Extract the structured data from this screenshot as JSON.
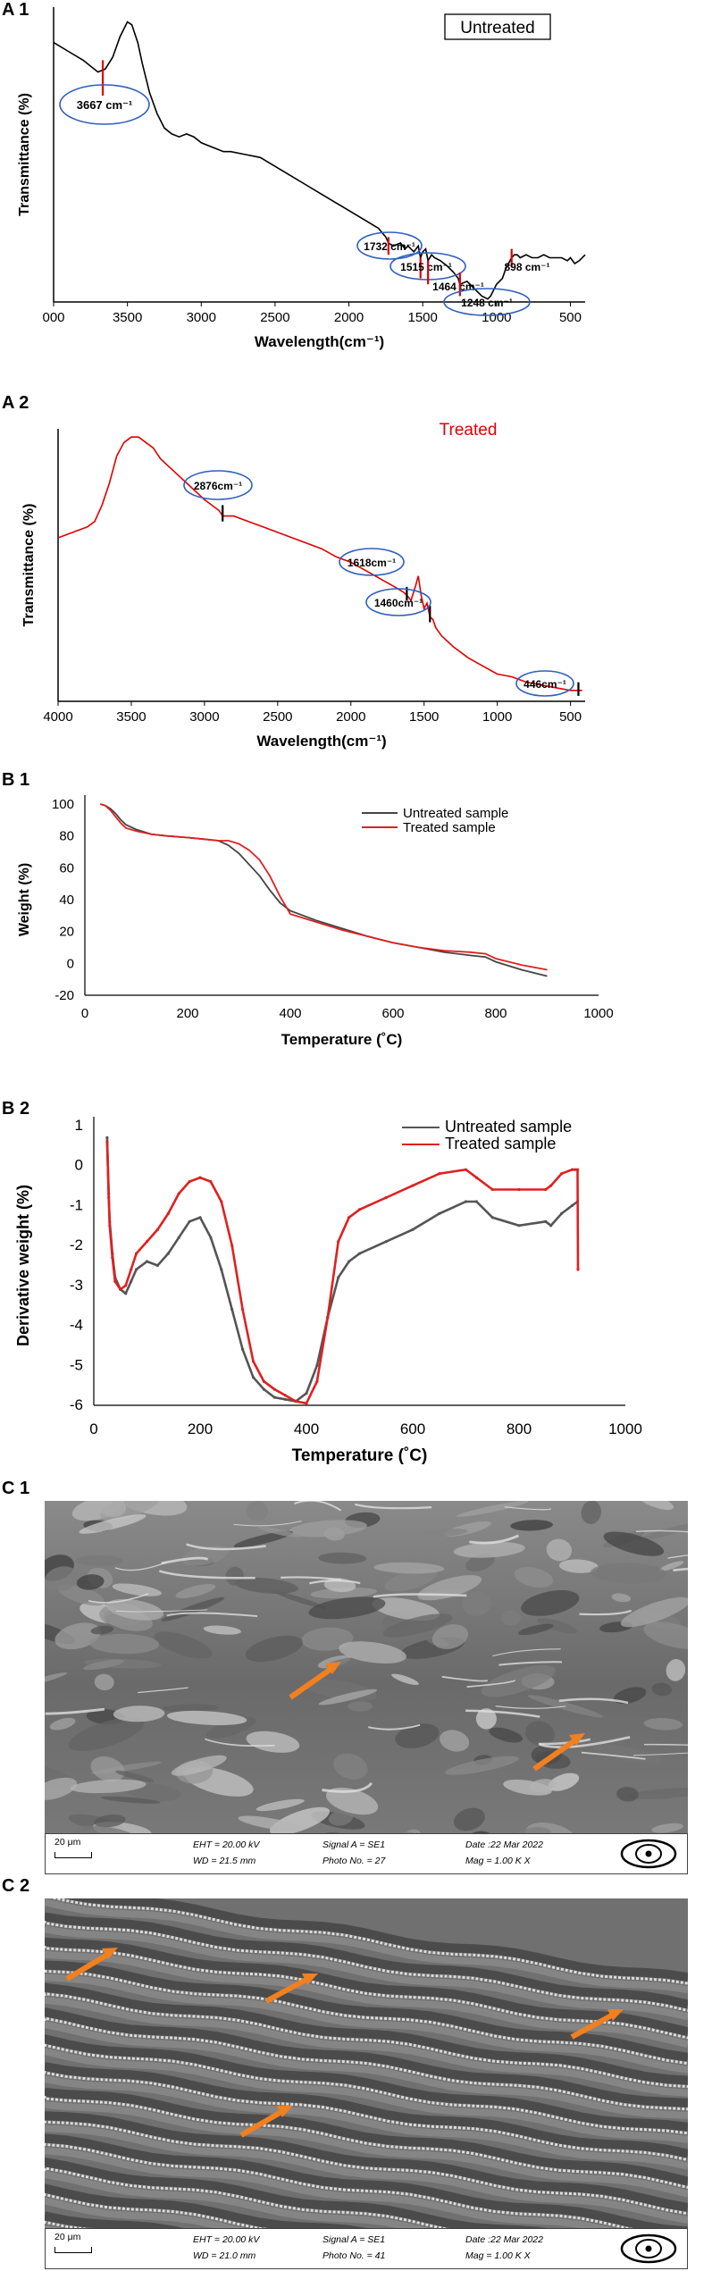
{
  "chart_data": [
    {
      "panel_label": "A 1",
      "type": "line",
      "title": "Untreated",
      "xlabel": "Wavelength(cm⁻¹)",
      "ylabel": "Transmittance (%)",
      "xlim": [
        4000,
        400
      ],
      "x_tick_labels": [
        "000",
        "3500",
        "3000",
        "2500",
        "2000",
        "1500",
        "1000",
        "500"
      ],
      "series": [
        {
          "name": "Untreated",
          "color": "#000000",
          "x": [
            4000,
            3900,
            3800,
            3700,
            3650,
            3600,
            3550,
            3500,
            3470,
            3430,
            3400,
            3350,
            3300,
            3250,
            3200,
            3150,
            3100,
            3050,
            3000,
            2950,
            2900,
            2850,
            2800,
            2700,
            2600,
            2500,
            2400,
            2300,
            2200,
            2100,
            2000,
            1900,
            1800,
            1750,
            1732,
            1700,
            1650,
            1620,
            1600,
            1560,
            1530,
            1515,
            1500,
            1480,
            1464,
            1440,
            1420,
            1380,
            1330,
            1290,
            1260,
            1248,
            1200,
            1160,
            1120,
            1100,
            1060,
            1040,
            1020,
            1000,
            980,
            960,
            940,
            920,
            898,
            880,
            860,
            840,
            800,
            760,
            720,
            680,
            640,
            600,
            560,
            520,
            500,
            470,
            440,
            400
          ],
          "y": [
            88,
            85,
            82,
            78,
            79,
            83,
            90,
            95,
            94,
            88,
            81,
            71,
            64,
            59,
            57,
            56,
            57,
            56,
            54,
            53,
            52,
            51,
            51,
            50,
            49,
            46,
            43,
            40,
            37,
            34,
            31,
            28,
            25,
            22,
            20,
            19,
            20,
            18,
            19,
            17,
            19,
            15,
            17,
            18,
            14,
            16,
            15,
            14,
            12,
            10,
            8,
            6,
            7,
            5,
            3,
            2,
            1,
            2,
            4,
            6,
            7,
            8,
            11,
            13,
            15,
            16,
            16,
            15,
            16,
            15,
            15,
            16,
            15,
            15,
            15,
            14,
            15,
            13,
            14,
            16
          ]
        }
      ],
      "annotations": [
        "3667 cm⁻¹",
        "1732 cm⁻¹",
        "1515 cm⁻¹",
        "1464 cm⁻¹",
        "1248 cm⁻¹",
        "898 cm⁻¹"
      ]
    },
    {
      "panel_label": "A 2",
      "type": "line",
      "title": "Treated",
      "xlabel": "Wavelength(cm⁻¹)",
      "ylabel": "Transmittance (%)",
      "xlim": [
        4000,
        400
      ],
      "x_tick_labels": [
        "4000",
        "3500",
        "3000",
        "2500",
        "2000",
        "1500",
        "1000",
        "500"
      ],
      "series": [
        {
          "name": "Treated",
          "color": "#e00000",
          "x": [
            4000,
            3900,
            3800,
            3750,
            3700,
            3650,
            3600,
            3550,
            3500,
            3450,
            3400,
            3350,
            3300,
            3200,
            3100,
            3000,
            2900,
            2876,
            2800,
            2700,
            2600,
            2500,
            2400,
            2300,
            2200,
            2100,
            2000,
            1900,
            1800,
            1700,
            1640,
            1618,
            1590,
            1560,
            1540,
            1520,
            1500,
            1480,
            1460,
            1440,
            1420,
            1380,
            1300,
            1200,
            1100,
            1000,
            900,
            800,
            700,
            600,
            500,
            446,
            420
          ],
          "y": [
            60,
            62,
            64,
            66,
            72,
            80,
            90,
            95,
            97,
            97,
            95,
            93,
            89,
            84,
            79,
            74,
            70,
            68,
            68,
            66,
            64,
            62,
            60,
            58,
            56,
            53,
            51,
            48,
            45,
            42,
            40,
            39,
            37,
            42,
            46,
            39,
            34,
            36,
            31,
            30,
            27,
            24,
            20,
            16,
            13,
            10,
            9,
            7,
            6,
            5,
            4,
            4,
            4
          ]
        }
      ],
      "annotations": [
        "2876cm⁻¹",
        "1618cm⁻¹",
        "1460cm⁻¹",
        "446cm⁻¹"
      ]
    },
    {
      "panel_label": "B 1",
      "type": "line",
      "xlabel": "Temperature (˚C)",
      "ylabel": "Weight (%)",
      "xlim": [
        0,
        1000
      ],
      "ylim": [
        -20,
        100
      ],
      "x_ticks": [
        0,
        200,
        400,
        600,
        800,
        1000
      ],
      "y_ticks": [
        -20,
        0,
        20,
        40,
        60,
        80,
        100
      ],
      "series": [
        {
          "name": "Untreated sample",
          "color": "#444444",
          "x": [
            30,
            40,
            50,
            60,
            70,
            80,
            100,
            130,
            160,
            200,
            230,
            260,
            280,
            300,
            320,
            340,
            360,
            380,
            400,
            450,
            500,
            550,
            600,
            650,
            700,
            750,
            780,
            800,
            850,
            900
          ],
          "y": [
            100,
            99,
            97,
            94,
            90,
            87,
            84,
            81,
            80,
            79,
            78,
            77,
            74,
            69,
            62,
            55,
            46,
            38,
            33,
            27,
            22,
            17,
            13,
            10,
            7,
            5,
            4,
            1,
            -4,
            -8
          ]
        },
        {
          "name": "Treated sample",
          "color": "#e02020",
          "x": [
            30,
            40,
            50,
            60,
            70,
            80,
            100,
            130,
            160,
            200,
            230,
            260,
            280,
            300,
            320,
            340,
            360,
            380,
            400,
            450,
            500,
            550,
            600,
            650,
            700,
            750,
            780,
            800,
            850,
            900
          ],
          "y": [
            100,
            99,
            96,
            92,
            88,
            85,
            83,
            81,
            80,
            79,
            78,
            77,
            77,
            75,
            71,
            65,
            55,
            42,
            31,
            26,
            21,
            17,
            13,
            10,
            8,
            7,
            6,
            3,
            -1,
            -4
          ]
        }
      ]
    },
    {
      "panel_label": "B 2",
      "type": "line",
      "xlabel": "Temperature (˚C)",
      "ylabel": "Derivative weight (%)",
      "xlim": [
        0,
        1000
      ],
      "ylim": [
        -6,
        1
      ],
      "x_ticks": [
        0,
        200,
        400,
        600,
        800,
        1000
      ],
      "y_ticks": [
        1,
        0,
        -1,
        -2,
        -3,
        -4,
        -5,
        -6
      ],
      "series": [
        {
          "name": "Untreated sample",
          "color": "#555555",
          "x": [
            25,
            28,
            30,
            35,
            40,
            50,
            60,
            70,
            80,
            100,
            120,
            140,
            160,
            180,
            200,
            220,
            240,
            260,
            280,
            300,
            320,
            340,
            360,
            380,
            400,
            420,
            440,
            460,
            480,
            500,
            550,
            600,
            650,
            700,
            720,
            750,
            800,
            850,
            860,
            880,
            900,
            910
          ],
          "y": [
            0.7,
            -0.8,
            -1.4,
            -2.2,
            -2.8,
            -3.1,
            -3.2,
            -2.9,
            -2.6,
            -2.4,
            -2.5,
            -2.2,
            -1.8,
            -1.4,
            -1.3,
            -1.8,
            -2.6,
            -3.6,
            -4.6,
            -5.3,
            -5.6,
            -5.8,
            -5.85,
            -5.9,
            -5.7,
            -5.0,
            -3.8,
            -2.8,
            -2.4,
            -2.2,
            -1.9,
            -1.6,
            -1.2,
            -0.9,
            -0.9,
            -1.3,
            -1.5,
            -1.4,
            -1.5,
            -1.2,
            -1.0,
            -0.9
          ]
        },
        {
          "name": "Treated sample",
          "color": "#e02020",
          "x": [
            25,
            28,
            30,
            35,
            40,
            50,
            60,
            70,
            80,
            100,
            120,
            140,
            160,
            180,
            200,
            220,
            240,
            260,
            280,
            300,
            320,
            340,
            360,
            380,
            400,
            420,
            440,
            460,
            480,
            500,
            550,
            600,
            650,
            700,
            720,
            750,
            800,
            850,
            860,
            880,
            900,
            905,
            910,
            911
          ],
          "y": [
            0.6,
            -0.7,
            -1.5,
            -2.3,
            -2.9,
            -3.1,
            -3.0,
            -2.6,
            -2.2,
            -1.9,
            -1.6,
            -1.2,
            -0.7,
            -0.4,
            -0.3,
            -0.4,
            -0.9,
            -2.0,
            -3.6,
            -4.9,
            -5.4,
            -5.6,
            -5.75,
            -5.9,
            -5.95,
            -5.4,
            -3.8,
            -1.9,
            -1.3,
            -1.1,
            -0.8,
            -0.5,
            -0.2,
            -0.1,
            -0.3,
            -0.6,
            -0.6,
            -0.6,
            -0.5,
            -0.2,
            -0.1,
            -0.1,
            -0.1,
            -2.6
          ]
        }
      ]
    }
  ],
  "sem": [
    {
      "panel_label": "C 1",
      "scale": "20 μm",
      "eht": "EHT = 20.00 kV",
      "wd": "WD = 21.5 mm",
      "signal": "Signal A = SE1",
      "photo": "Photo No. = 27",
      "date": "Date :22 Mar 2022",
      "mag": "Mag = 1.00 K X"
    },
    {
      "panel_label": "C 2",
      "scale": "20 μm",
      "eht": "EHT = 20.00 kV",
      "wd": "WD = 21.0 mm",
      "signal": "Signal A = SE1",
      "photo": "Photo No. = 41",
      "date": "Date :22 Mar 2022",
      "mag": "Mag = 1.00 K X"
    }
  ]
}
